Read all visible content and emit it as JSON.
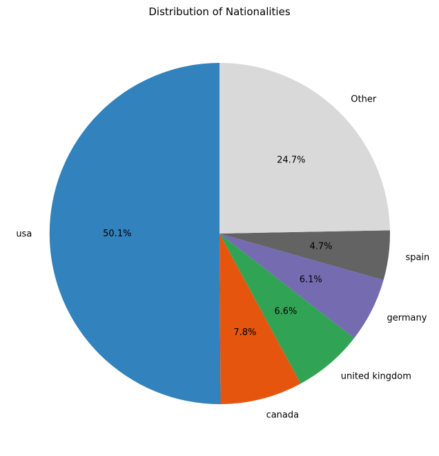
{
  "chart_data": {
    "type": "pie",
    "title": "Distribution of Nationalities",
    "slices": [
      {
        "label": "usa",
        "value": 50.1,
        "pct_label": "50.1%",
        "color": "#3182bd"
      },
      {
        "label": "canada",
        "value": 7.8,
        "pct_label": "7.8%",
        "color": "#e6550d"
      },
      {
        "label": "united kingdom",
        "value": 6.6,
        "pct_label": "6.6%",
        "color": "#31a354"
      },
      {
        "label": "germany",
        "value": 6.1,
        "pct_label": "6.1%",
        "color": "#756bb1"
      },
      {
        "label": "spain",
        "value": 4.7,
        "pct_label": "4.7%",
        "color": "#636363"
      },
      {
        "label": "Other",
        "value": 24.7,
        "pct_label": "24.7%",
        "color": "#d9d9d9"
      }
    ],
    "start_angle": "top",
    "direction": "counterclockwise",
    "legend": "none"
  }
}
